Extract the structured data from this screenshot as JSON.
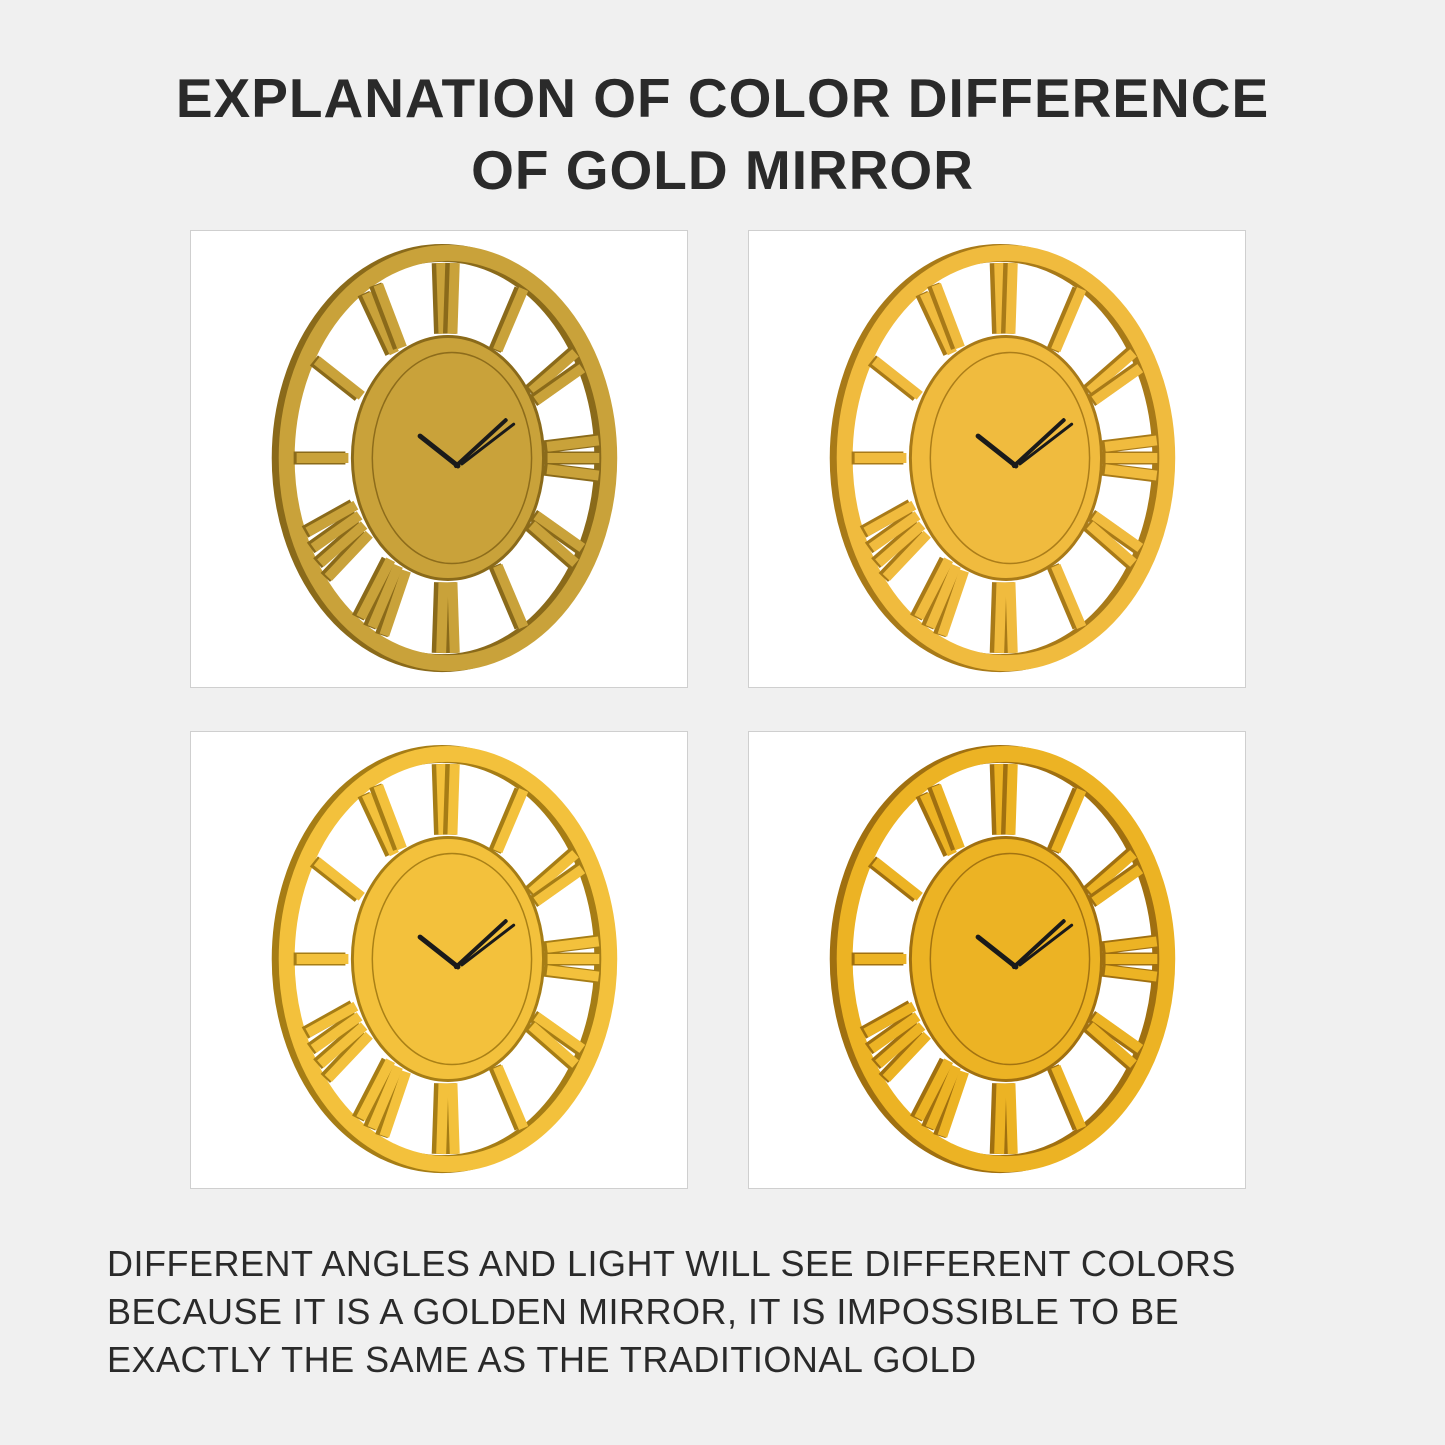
{
  "title": {
    "line1": "EXPLANATION OF COLOR DIFFERENCE",
    "line2": "OF GOLD MIRROR"
  },
  "clocks": [
    {
      "color": "#c9a23a",
      "shade": "#8a6a1a"
    },
    {
      "color": "#f0bb3e",
      "shade": "#a87a18"
    },
    {
      "color": "#f3c13c",
      "shade": "#a67d15"
    },
    {
      "color": "#ecb324",
      "shade": "#a07010"
    }
  ],
  "caption": {
    "line1": "DIFFERENT ANGLES AND LIGHT WILL SEE DIFFERENT COLORS",
    "line2": "BECAUSE IT IS A GOLDEN MIRROR, IT IS IMPOSSIBLE TO BE",
    "line3": "EXACTLY THE SAME AS THE TRADITIONAL GOLD"
  }
}
